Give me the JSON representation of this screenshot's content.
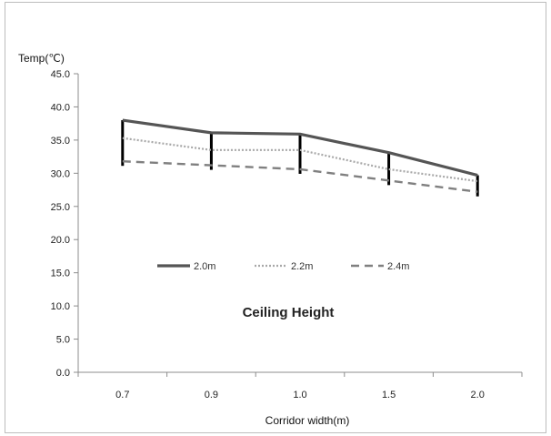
{
  "chart_data": {
    "type": "line",
    "title": "",
    "ylabel": "Temp(℃)",
    "xlabel": "Corridor width(m)",
    "categories": [
      "0.7",
      "0.9",
      "1.0",
      "1.5",
      "2.0"
    ],
    "ylim": [
      0,
      45
    ],
    "yticks": [
      "0.0",
      "5.0",
      "10.0",
      "15.0",
      "20.0",
      "25.0",
      "30.0",
      "35.0",
      "40.0",
      "45.0"
    ],
    "grid": false,
    "legend_placement": "center",
    "annotation": "Ceiling Height",
    "series": [
      {
        "name": "2.0m",
        "values": [
          38.0,
          36.1,
          35.9,
          33.1,
          29.7
        ],
        "style": "solid",
        "color": "#555555"
      },
      {
        "name": "2.2m",
        "values": [
          35.3,
          33.5,
          33.5,
          30.6,
          28.8
        ],
        "style": "dotted",
        "color": "#a8a8a8"
      },
      {
        "name": "2.4m",
        "values": [
          31.8,
          31.2,
          30.6,
          28.9,
          27.2
        ],
        "style": "dashed",
        "color": "#808080"
      }
    ],
    "range_bars": {
      "color": "#000000",
      "from_series": "2.0m",
      "to_series": "2.4m"
    }
  }
}
